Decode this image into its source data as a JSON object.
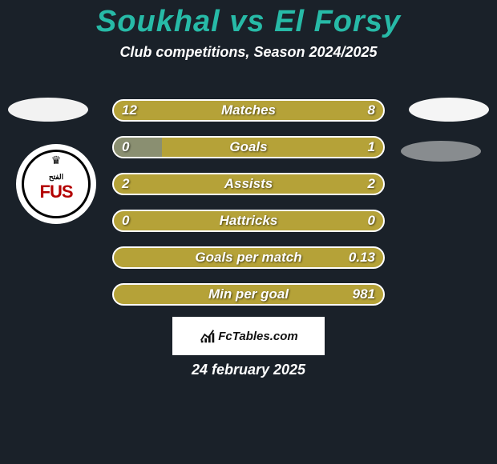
{
  "header": {
    "title": "Soukhal vs El Forsy",
    "subtitle": "Club competitions, Season 2024/2025"
  },
  "logo": {
    "fus_text": "FUS"
  },
  "bars": {
    "bg_color": "#b5a238",
    "fill_color": "#8a8f71",
    "border_color": "#ffffff",
    "text_color": "#ffffff",
    "label_fontsize": 17,
    "rows": [
      {
        "label": "Matches",
        "left_val": "12",
        "right_val": "8",
        "left_pct": 0,
        "right_pct": 0
      },
      {
        "label": "Goals",
        "left_val": "0",
        "right_val": "1",
        "left_pct": 18,
        "right_pct": 0
      },
      {
        "label": "Assists",
        "left_val": "2",
        "right_val": "2",
        "left_pct": 0,
        "right_pct": 0
      },
      {
        "label": "Hattricks",
        "left_val": "0",
        "right_val": "0",
        "left_pct": 0,
        "right_pct": 0
      },
      {
        "label": "Goals per match",
        "left_val": "",
        "right_val": "0.13",
        "left_pct": 0,
        "right_pct": 0
      },
      {
        "label": "Min per goal",
        "left_val": "",
        "right_val": "981",
        "left_pct": 0,
        "right_pct": 0
      }
    ]
  },
  "footer": {
    "brand": "FcTables.com",
    "date": "24 february 2025"
  },
  "colors": {
    "page_bg": "#1a2129",
    "title_color": "#27baa7",
    "text_color": "#ffffff"
  }
}
